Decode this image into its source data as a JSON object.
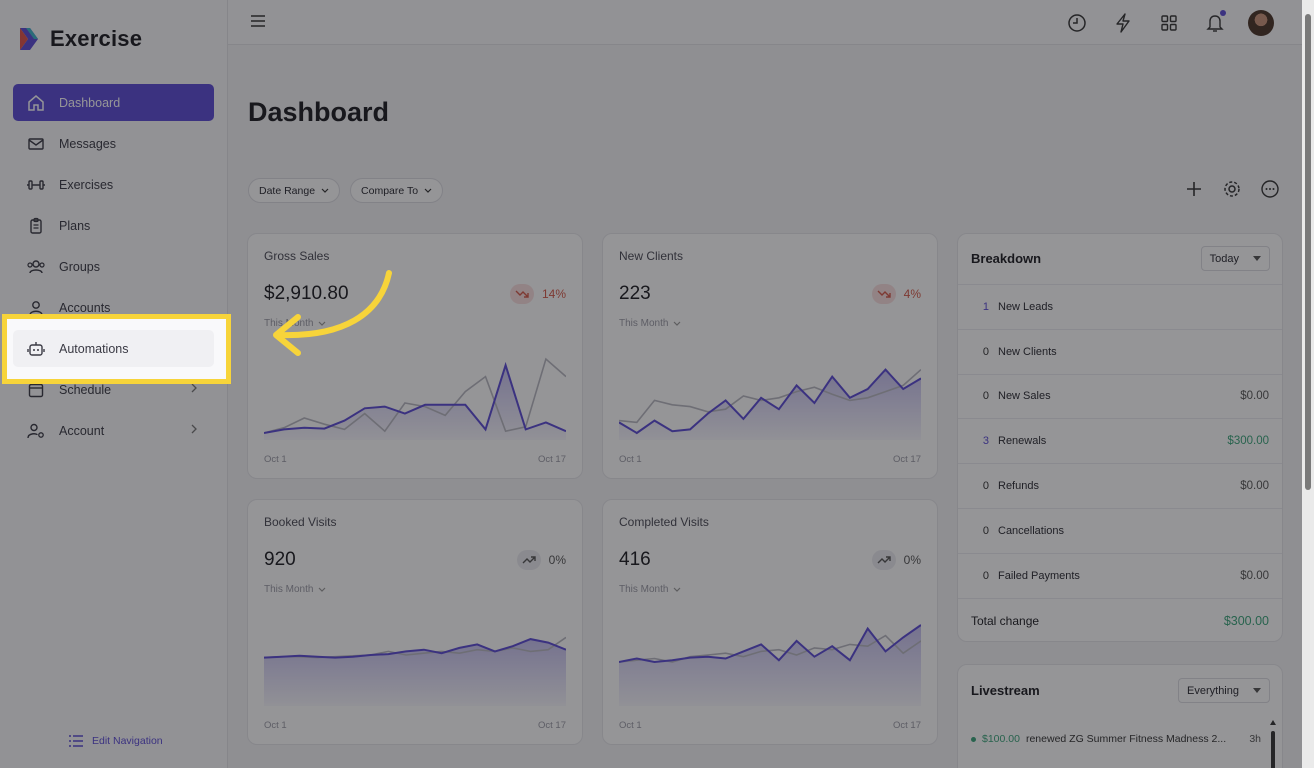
{
  "brand": {
    "name": "Exercise"
  },
  "sidebar": {
    "items": [
      {
        "label": "Dashboard",
        "icon": "home-icon"
      },
      {
        "label": "Messages",
        "icon": "mail-icon"
      },
      {
        "label": "Exercises",
        "icon": "dumbbell-icon"
      },
      {
        "label": "Plans",
        "icon": "clipboard-icon"
      },
      {
        "label": "Groups",
        "icon": "users-icon"
      },
      {
        "label": "Accounts",
        "icon": "user-icon"
      },
      {
        "label": "Automations",
        "icon": "robot-icon"
      },
      {
        "label": "Schedule",
        "icon": "calendar-icon"
      },
      {
        "label": "Account",
        "icon": "user-gear-icon"
      }
    ],
    "edit_nav": "Edit Navigation"
  },
  "page": {
    "title": "Dashboard"
  },
  "filters": {
    "date_range": "Date Range",
    "compare_to": "Compare To"
  },
  "cards": [
    {
      "title": "Gross Sales",
      "value": "$2,910.80",
      "change": "14%",
      "trend": "down",
      "period": "This Month",
      "start": "Oct 1",
      "end": "Oct 17",
      "current": [
        0.08,
        0.12,
        0.14,
        0.13,
        0.22,
        0.36,
        0.38,
        0.3,
        0.4,
        0.4,
        0.4,
        0.12,
        0.85,
        0.12,
        0.2,
        0.1
      ],
      "previous": [
        0.08,
        0.14,
        0.25,
        0.18,
        0.12,
        0.3,
        0.1,
        0.42,
        0.38,
        0.28,
        0.55,
        0.72,
        0.1,
        0.15,
        0.92,
        0.72
      ]
    },
    {
      "title": "New Clients",
      "value": "223",
      "change": "4%",
      "trend": "down",
      "period": "This Month",
      "start": "Oct 1",
      "end": "Oct 17",
      "current": [
        0.2,
        0.08,
        0.22,
        0.1,
        0.12,
        0.3,
        0.45,
        0.24,
        0.48,
        0.35,
        0.62,
        0.42,
        0.72,
        0.48,
        0.58,
        0.8,
        0.58,
        0.7
      ],
      "previous": [
        0.22,
        0.2,
        0.45,
        0.4,
        0.38,
        0.32,
        0.35,
        0.5,
        0.45,
        0.48,
        0.55,
        0.6,
        0.52,
        0.45,
        0.48,
        0.55,
        0.62,
        0.8
      ]
    },
    {
      "title": "Booked Visits",
      "value": "920",
      "change": "0%",
      "trend": "flat",
      "period": "This Month",
      "start": "Oct 1",
      "end": "Oct 17",
      "current": [
        0.55,
        0.56,
        0.57,
        0.56,
        0.55,
        0.56,
        0.58,
        0.59,
        0.62,
        0.64,
        0.6,
        0.66,
        0.7,
        0.62,
        0.68,
        0.76,
        0.72,
        0.64
      ],
      "previous": [
        0.55,
        0.56,
        0.56,
        0.55,
        0.56,
        0.57,
        0.58,
        0.62,
        0.58,
        0.6,
        0.62,
        0.6,
        0.64,
        0.62,
        0.66,
        0.62,
        0.64,
        0.78
      ]
    },
    {
      "title": "Completed Visits",
      "value": "416",
      "change": "0%",
      "trend": "flat",
      "period": "This Month",
      "start": "Oct 1",
      "end": "Oct 17",
      "current": [
        0.5,
        0.54,
        0.5,
        0.52,
        0.55,
        0.56,
        0.54,
        0.62,
        0.7,
        0.52,
        0.74,
        0.56,
        0.68,
        0.52,
        0.88,
        0.62,
        0.78,
        0.92
      ],
      "previous": [
        0.5,
        0.52,
        0.54,
        0.5,
        0.56,
        0.58,
        0.6,
        0.56,
        0.62,
        0.64,
        0.58,
        0.66,
        0.64,
        0.7,
        0.68,
        0.8,
        0.6,
        0.74
      ]
    }
  ],
  "breakdown": {
    "title": "Breakdown",
    "filter": "Today",
    "rows": [
      {
        "count": "1",
        "label": "New Leads",
        "amount": "",
        "accent": true
      },
      {
        "count": "0",
        "label": "New Clients",
        "amount": ""
      },
      {
        "count": "0",
        "label": "New Sales",
        "amount": "$0.00"
      },
      {
        "count": "3",
        "label": "Renewals",
        "amount": "$300.00",
        "accent": true,
        "green": true
      },
      {
        "count": "0",
        "label": "Refunds",
        "amount": "$0.00"
      },
      {
        "count": "0",
        "label": "Cancellations",
        "amount": ""
      },
      {
        "count": "0",
        "label": "Failed Payments",
        "amount": "$0.00"
      }
    ],
    "total_label": "Total change",
    "total_amount": "$300.00"
  },
  "livestream": {
    "title": "Livestream",
    "filter": "Everything",
    "item": {
      "amount": "$100.00",
      "text": "renewed ZG Summer Fitness Madness 2...",
      "time": "3h"
    }
  },
  "colors": {
    "accent": "#5b4bd6",
    "highlight": "#f7d43a",
    "positive": "#3aa57a",
    "negative": "#d65a4a"
  }
}
